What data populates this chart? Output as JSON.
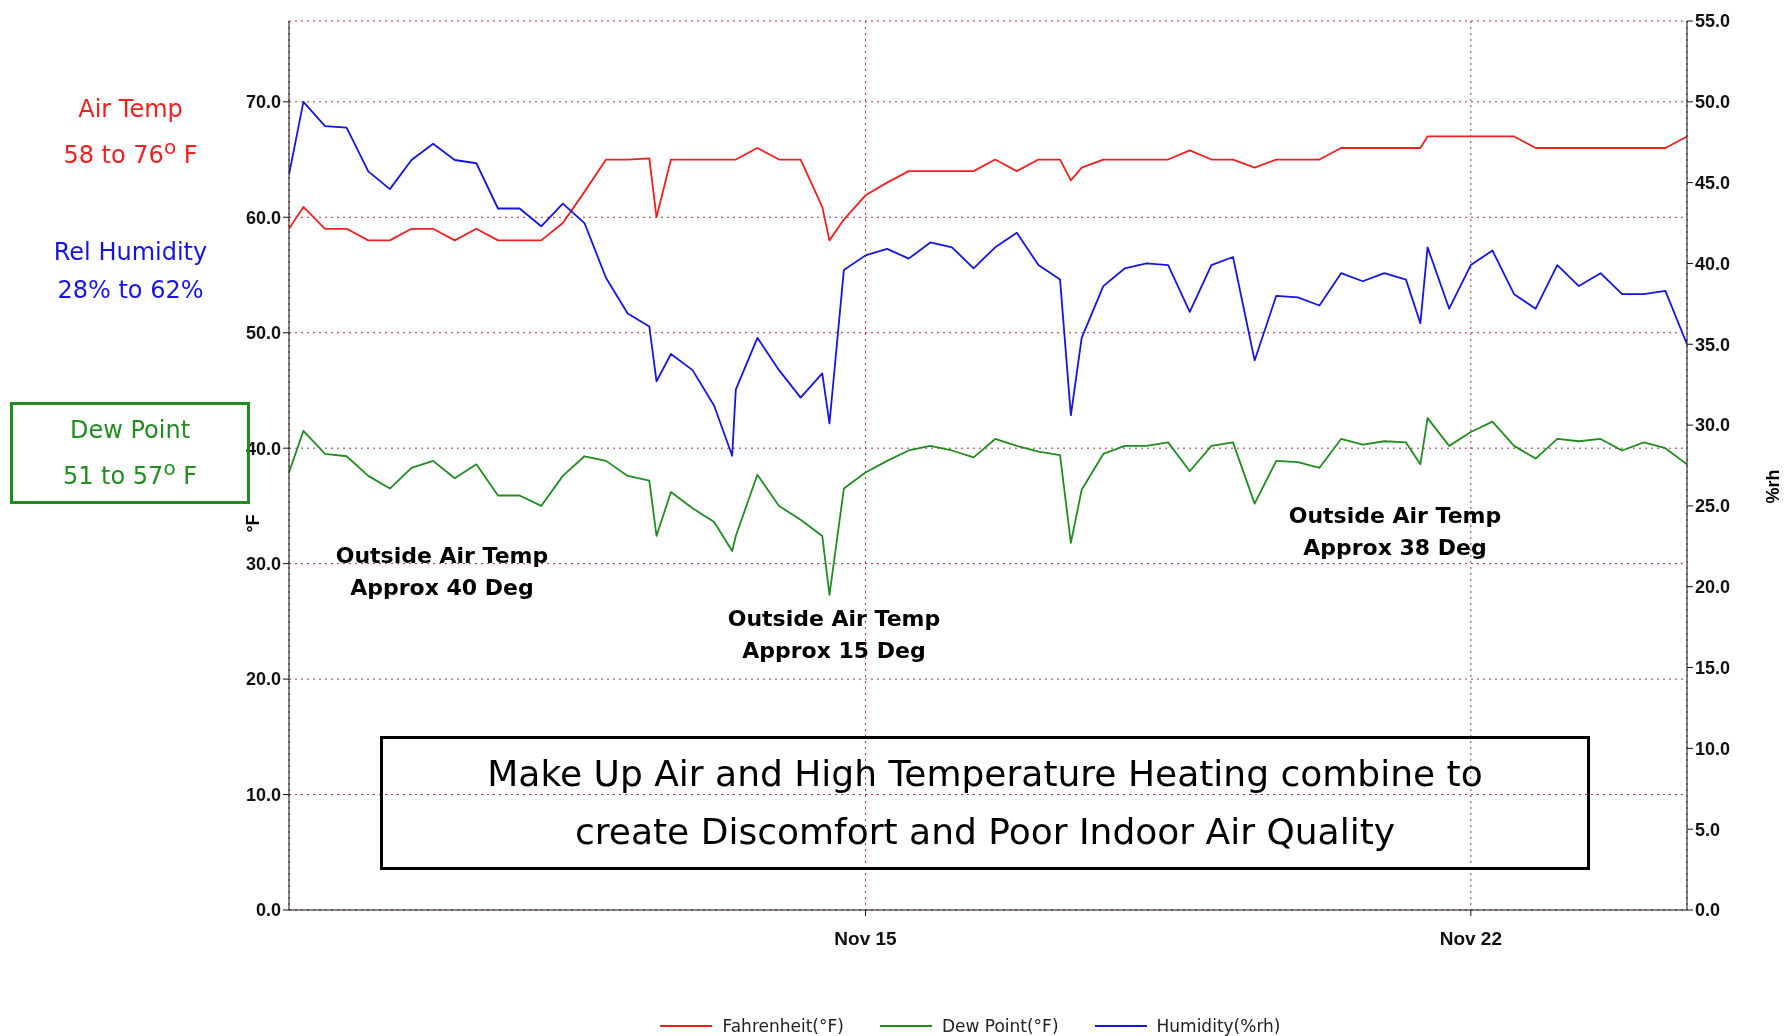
{
  "chart_data": {
    "type": "line",
    "xlabel": null,
    "ylabel": "°F",
    "y2label": "%rh",
    "x": [
      "--11-08T08:00",
      "--11-08T12:00",
      "--11-08T18:00",
      "--11-09T00:00",
      "--11-09T06:00",
      "--11-09T12:00",
      "--11-09T18:00",
      "--11-10T00:00",
      "--11-10T06:00",
      "--11-10T12:00",
      "--11-10T18:00",
      "--11-11T00:00",
      "--11-11T06:00",
      "--11-11T12:00",
      "--11-11T18:00",
      "--11-12T00:00",
      "--11-12T06:00",
      "--11-12T12:00",
      "--11-12T14:00",
      "--11-12T18:00",
      "--11-13T00:00",
      "--11-13T06:00",
      "--11-13T11:00",
      "--11-13T12:00",
      "--11-13T18:00",
      "--11-14T00:00",
      "--11-14T06:00",
      "--11-14T12:00",
      "--11-14T14:00",
      "--11-14T18:00",
      "--11-15T00:00",
      "--11-15T06:00",
      "--11-15T12:00",
      "--11-15T18:00",
      "--11-16T00:00",
      "--11-16T06:00",
      "--11-16T12:00",
      "--11-16T18:00",
      "--11-17T00:00",
      "--11-17T06:00",
      "--11-17T09:00",
      "--11-17T12:00",
      "--11-17T18:00",
      "--11-18T00:00",
      "--11-18T06:00",
      "--11-18T12:00",
      "--11-18T18:00",
      "--11-19T00:00",
      "--11-19T06:00",
      "--11-19T12:00",
      "--11-19T18:00",
      "--11-20T00:00",
      "--11-20T06:00",
      "--11-20T12:00",
      "--11-20T18:00",
      "--11-21T00:00",
      "--11-21T06:00",
      "--11-21T10:00",
      "--11-21T12:00",
      "--11-21T18:00",
      "--11-22T00:00",
      "--11-22T06:00",
      "--11-22T12:00",
      "--11-22T18:00",
      "--11-23T00:00",
      "--11-23T06:00",
      "--11-23T12:00",
      "--11-23T18:00",
      "--11-24T00:00",
      "--11-24T06:00",
      "--11-24T12:00"
    ],
    "series": [
      {
        "name": "Fahrenheit(°F)",
        "color": "#ee2020",
        "values": [
          59.0,
          60.9,
          59.0,
          59.0,
          58.0,
          58.0,
          59.0,
          59.0,
          58.0,
          59.0,
          58.0,
          58.0,
          58.0,
          59.5,
          62.2,
          65.0,
          65.0,
          65.1,
          60.0,
          65.0,
          65.0,
          65.0,
          65.0,
          65.0,
          66.0,
          65.0,
          65.0,
          60.9,
          58.0,
          59.8,
          61.9,
          63.0,
          64.0,
          64.0,
          64.0,
          64.0,
          65.0,
          64.0,
          65.0,
          65.0,
          63.2,
          64.3,
          65.0,
          65.0,
          65.0,
          65.0,
          65.8,
          65.0,
          65.0,
          64.3,
          65.0,
          65.0,
          65.0,
          66.0,
          66.0,
          66.0,
          66.0,
          66.0,
          67.0,
          67.0,
          67.0,
          67.0,
          67.0,
          66.0,
          66.0,
          66.0,
          66.0,
          66.0,
          66.0,
          66.0,
          67.0
        ]
      },
      {
        "name": "Dew Point(°F)",
        "color": "#228b22",
        "values": [
          37.9,
          41.5,
          39.5,
          39.3,
          37.6,
          36.5,
          38.3,
          38.9,
          37.4,
          38.6,
          35.9,
          35.9,
          35.0,
          37.6,
          39.3,
          38.9,
          37.6,
          37.2,
          32.4,
          36.2,
          34.8,
          33.6,
          31.1,
          32.4,
          37.7,
          35.0,
          33.8,
          32.4,
          27.3,
          36.5,
          37.9,
          38.9,
          39.8,
          40.2,
          39.8,
          39.2,
          40.8,
          40.2,
          39.7,
          39.4,
          31.8,
          36.4,
          39.5,
          40.2,
          40.2,
          40.5,
          38.0,
          40.2,
          40.5,
          35.2,
          38.9,
          38.8,
          38.3,
          40.8,
          40.3,
          40.6,
          40.5,
          38.6,
          42.6,
          40.2,
          41.4,
          42.3,
          40.2,
          39.1,
          40.8,
          40.6,
          40.8,
          39.8,
          40.5,
          40.0,
          38.6
        ]
      },
      {
        "name": "Humidity(%rh)",
        "color": "#1515e0",
        "axis": "y2",
        "values": [
          45.5,
          50.0,
          48.5,
          48.4,
          45.7,
          44.6,
          46.4,
          47.4,
          46.4,
          46.2,
          43.4,
          43.4,
          42.3,
          43.7,
          42.5,
          39.1,
          36.9,
          36.1,
          32.7,
          34.4,
          33.4,
          31.2,
          28.1,
          32.2,
          35.4,
          33.4,
          31.7,
          33.2,
          30.1,
          39.6,
          40.5,
          40.9,
          40.3,
          41.3,
          41.0,
          39.7,
          41.0,
          41.9,
          39.9,
          39.0,
          30.6,
          35.4,
          38.6,
          39.7,
          40.0,
          39.9,
          37.0,
          39.9,
          40.4,
          34.0,
          38.0,
          37.9,
          37.4,
          39.4,
          38.9,
          39.4,
          39.0,
          36.3,
          41.0,
          37.2,
          39.9,
          40.8,
          38.1,
          37.2,
          39.9,
          38.6,
          39.4,
          38.1,
          38.1,
          38.3,
          35.0
        ]
      }
    ],
    "xlim": [
      "--11-08T08:00",
      "--11-24T12:00"
    ],
    "xticks": [
      {
        "value": "--11-15",
        "label": "Nov 15"
      },
      {
        "value": "--11-22",
        "label": "Nov 22"
      }
    ],
    "ylim": [
      0,
      77
    ],
    "yticks": [
      {
        "value": 0,
        "label": "0.0"
      },
      {
        "value": 10,
        "label": "10.0"
      },
      {
        "value": 20,
        "label": "20.0"
      },
      {
        "value": 30,
        "label": "30.0"
      },
      {
        "value": 40,
        "label": "40.0"
      },
      {
        "value": 50,
        "label": "50.0"
      },
      {
        "value": 60,
        "label": "60.0"
      },
      {
        "value": 70,
        "label": "70.0"
      }
    ],
    "y2lim": [
      0,
      55
    ],
    "y2ticks": [
      {
        "value": 0,
        "label": "0.0"
      },
      {
        "value": 5,
        "label": "5.0"
      },
      {
        "value": 10,
        "label": "10.0"
      },
      {
        "value": 15,
        "label": "15.0"
      },
      {
        "value": 20,
        "label": "20.0"
      },
      {
        "value": 25,
        "label": "25.0"
      },
      {
        "value": 30,
        "label": "30.0"
      },
      {
        "value": 35,
        "label": "35.0"
      },
      {
        "value": 40,
        "label": "40.0"
      },
      {
        "value": 45,
        "label": "45.0"
      },
      {
        "value": 50,
        "label": "50.0"
      },
      {
        "value": 55,
        "label": "55.0"
      }
    ],
    "grid": true,
    "legend": "bottom",
    "line_style": "solid",
    "annotations": [
      "Air Temp\n58 to 76$^{o}$ F",
      "Rel Humidity\n28% to 62%",
      "Dew Point\n51 to 57$^{o}$ F",
      "Outside Air Temp\nApprox 40 Deg",
      "Outside Air Temp\nApprox 15 Deg",
      "Outside Air Temp\nApprox 38 Deg",
      "Make Up Air and High Temperature Heating combine to\ncreate Discomfort and Poor Indoor Air Quality"
    ]
  }
}
